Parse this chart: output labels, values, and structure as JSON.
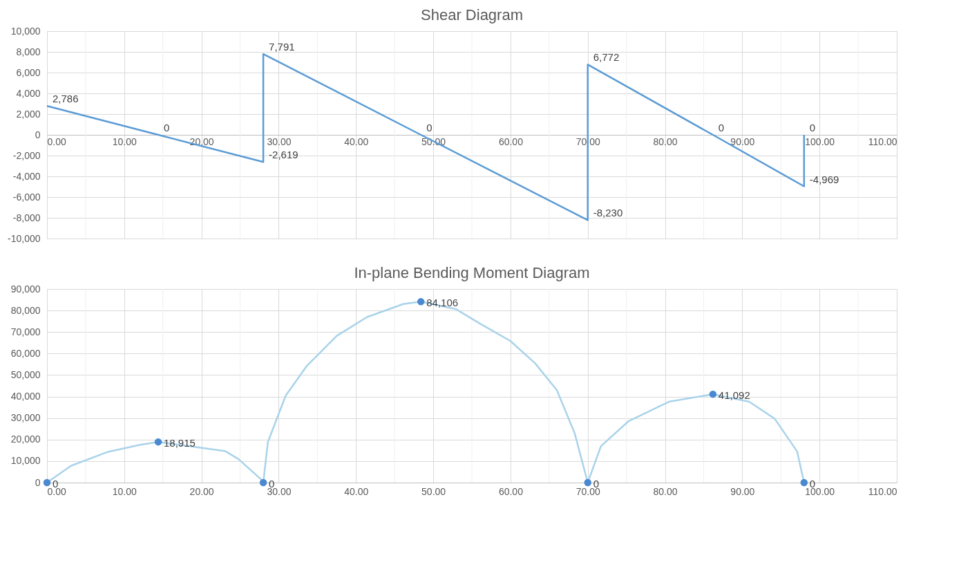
{
  "chart_data": [
    {
      "type": "line",
      "title": "Shear Diagram",
      "xlim": [
        0,
        110
      ],
      "xticks": [
        {
          "value": 0,
          "label": "0.00"
        },
        {
          "value": 10,
          "label": "10.00"
        },
        {
          "value": 20,
          "label": "20.00"
        },
        {
          "value": 30,
          "label": "30.00"
        },
        {
          "value": 40,
          "label": "40.00"
        },
        {
          "value": 50,
          "label": "50.00"
        },
        {
          "value": 60,
          "label": "60.00"
        },
        {
          "value": 70,
          "label": "70.00"
        },
        {
          "value": 80,
          "label": "80.00"
        },
        {
          "value": 90,
          "label": "90.00"
        },
        {
          "value": 100,
          "label": "100.00"
        },
        {
          "value": 110,
          "label": "110.00"
        }
      ],
      "ylim": [
        -10000,
        10000
      ],
      "yticks": [
        {
          "value": -10000,
          "label": "-10,000"
        },
        {
          "value": -8000,
          "label": "-8,000"
        },
        {
          "value": -6000,
          "label": "-6,000"
        },
        {
          "value": -4000,
          "label": "-4,000"
        },
        {
          "value": -2000,
          "label": "-2,000"
        },
        0,
        {
          "value": 2000,
          "label": "2,000"
        },
        {
          "value": 4000,
          "label": "4,000"
        },
        {
          "value": 6000,
          "label": "6,000"
        },
        {
          "value": 8000,
          "label": "8,000"
        },
        {
          "value": 10000,
          "label": "10,000"
        }
      ],
      "grid": true,
      "series": [
        {
          "color": "#5b9bd5",
          "x": [
            0,
            14.4,
            28,
            28,
            48.4,
            70,
            70,
            86.2,
            98,
            98
          ],
          "values": [
            2786,
            0,
            -2619,
            7791,
            0,
            -8230,
            6772,
            0,
            -4969,
            0
          ],
          "value_labels": [
            "2,786",
            "0",
            "-2,619",
            "7,791",
            "0",
            "-8,230",
            "6,772",
            "0",
            "-4,969",
            "0"
          ]
        }
      ]
    },
    {
      "type": "line",
      "title": "In-plane Bending Moment Diagram",
      "xlim": [
        0,
        110
      ],
      "xticks": [
        {
          "value": 0,
          "label": "0.00"
        },
        {
          "value": 10,
          "label": "10.00"
        },
        {
          "value": 20,
          "label": "20.00"
        },
        {
          "value": 30,
          "label": "30.00"
        },
        {
          "value": 40,
          "label": "40.00"
        },
        {
          "value": 50,
          "label": "50.00"
        },
        {
          "value": 60,
          "label": "60.00"
        },
        {
          "value": 70,
          "label": "70.00"
        },
        {
          "value": 80,
          "label": "80.00"
        },
        {
          "value": 90,
          "label": "90.00"
        },
        {
          "value": 100,
          "label": "100.00"
        },
        {
          "value": 110,
          "label": "110.00"
        }
      ],
      "ylim": [
        0,
        90000
      ],
      "yticks": [
        0,
        {
          "value": 10000,
          "label": "10,000"
        },
        {
          "value": 20000,
          "label": "20,000"
        },
        {
          "value": 30000,
          "label": "30,000"
        },
        {
          "value": 40000,
          "label": "40,000"
        },
        {
          "value": 50000,
          "label": "50,000"
        },
        {
          "value": 60000,
          "label": "60,000"
        },
        {
          "value": 70000,
          "label": "70,000"
        },
        {
          "value": 80000,
          "label": "80,000"
        },
        {
          "value": 90000,
          "label": "90,000"
        }
      ],
      "grid": true,
      "series": [
        {
          "type": "line",
          "color": "#a9d3ea",
          "x": [
            0,
            3.1,
            7.8,
            12.1,
            14.4,
            23.1,
            24.8,
            27.6,
            28,
            28.6,
            30.9,
            33.6,
            37.5,
            41.4,
            46.1,
            48.4,
            52.9,
            56.1,
            60,
            63.2,
            66,
            68.3,
            70,
            71.7,
            75.3,
            80.5,
            86.2,
            90.9,
            94.2,
            97.1,
            98
          ],
          "values": [
            0,
            7800,
            14200,
            17600,
            18915,
            14600,
            10900,
            1900,
            0,
            18900,
            40400,
            54100,
            68200,
            76900,
            83000,
            84106,
            80700,
            73800,
            65800,
            55400,
            43000,
            23000,
            0,
            16900,
            28600,
            37600,
            41092,
            37600,
            29700,
            14500,
            0
          ]
        },
        {
          "type": "scatter",
          "color": "#4a89d0",
          "marker": "circle",
          "x": [
            0,
            14.4,
            28,
            48.4,
            70,
            86.2,
            98
          ],
          "values": [
            0,
            18915,
            0,
            84106,
            0,
            41092,
            0
          ],
          "value_labels": [
            "0",
            "18,915",
            "0",
            "84,106",
            "0",
            "41,092",
            "0"
          ]
        }
      ]
    }
  ]
}
